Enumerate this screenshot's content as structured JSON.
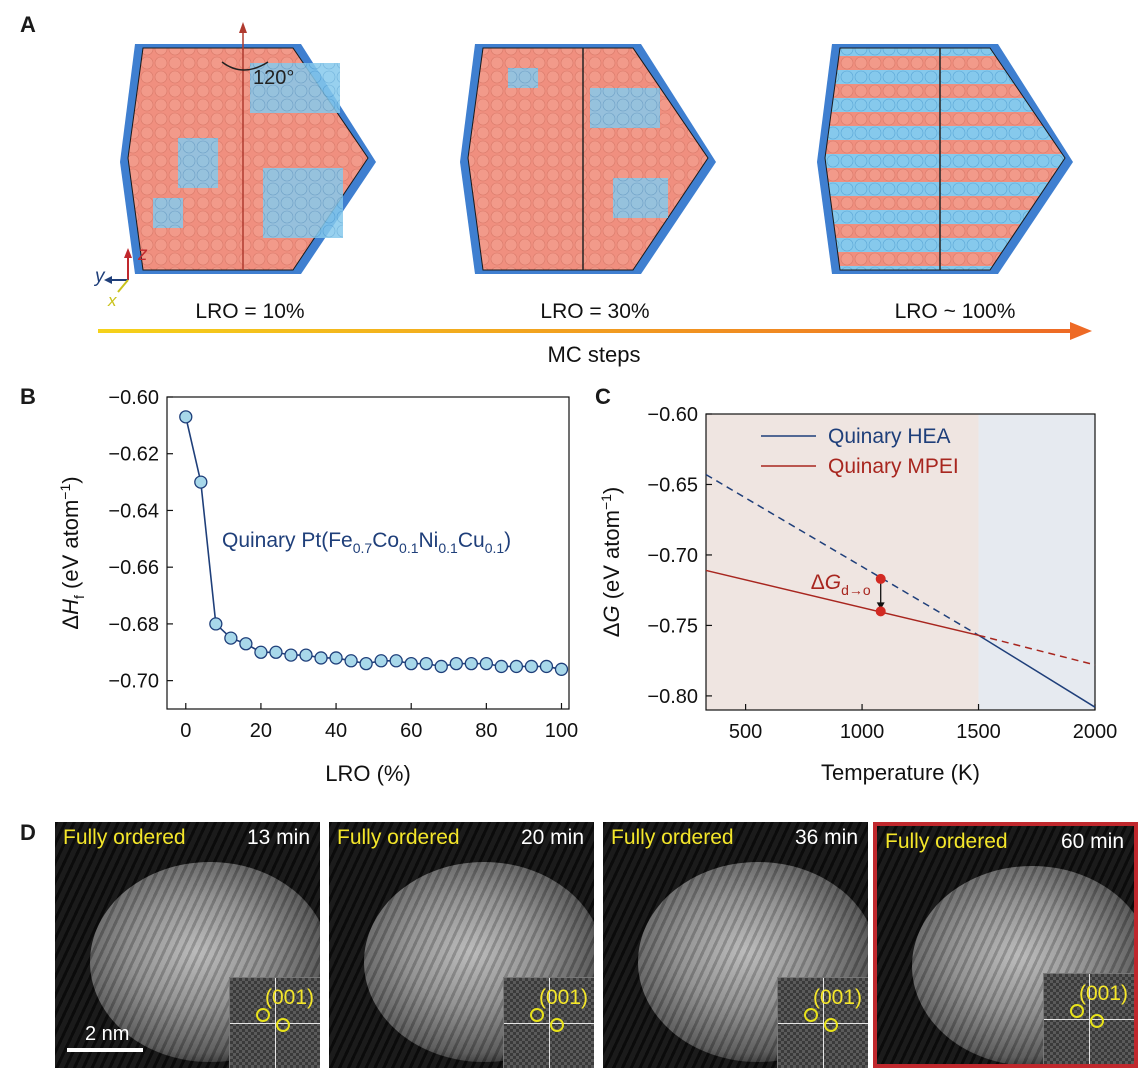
{
  "panel_a": {
    "letter": "A",
    "rotation_label": "120°",
    "axes": {
      "y": "y",
      "z": "z",
      "x": "x"
    },
    "lro_labels": [
      "LRO = 10%",
      "LRO = 30%",
      "LRO ~ 100%"
    ],
    "arrow_label": "MC steps",
    "colors": {
      "pt": "#f08f7f",
      "light_blue": "#72c2ea",
      "dark_blue": "#3f7fd0",
      "arrow_start": "#f5d21a",
      "arrow_end": "#ee6a25"
    }
  },
  "panel_b": {
    "letter": "B"
  },
  "panel_c": {
    "letter": "C"
  },
  "panel_d": {
    "letter": "D",
    "frames": [
      {
        "state": "Fully ordered",
        "time": "13 min",
        "miller": "(001)",
        "scale": "2 nm"
      },
      {
        "state": "Fully ordered",
        "time": "20 min",
        "miller": "(001)"
      },
      {
        "state": "Fully ordered",
        "time": "36 min",
        "miller": "(001)"
      },
      {
        "state": "Fully ordered",
        "time": "60 min",
        "miller": "(001)"
      }
    ],
    "highlight_color": "#c0282d"
  },
  "chart_data": [
    {
      "type": "line",
      "title": "",
      "xlabel": "LRO (%)",
      "ylabel": "ΔHf (eV atom−1)",
      "xlim": [
        -5,
        102
      ],
      "ylim": [
        -0.71,
        -0.6
      ],
      "xticks": [
        "0",
        "20",
        "40",
        "60",
        "80",
        "100"
      ],
      "yticks": [
        "-0.60",
        "-0.62",
        "-0.64",
        "-0.66",
        "-0.68",
        "-0.70"
      ],
      "annotation": "Quinary Pt(Fe0.7Co0.1Ni0.1Cu0.1)",
      "series": [
        {
          "name": "Quinary Pt(Fe0.7Co0.1Ni0.1Cu0.1)",
          "color": "#1f3f7a",
          "marker_fill": "#a8d8ea",
          "x": [
            0,
            4,
            8,
            12,
            16,
            20,
            24,
            28,
            32,
            36,
            40,
            44,
            48,
            52,
            56,
            60,
            64,
            68,
            72,
            76,
            80,
            84,
            88,
            92,
            96,
            100
          ],
          "y": [
            -0.607,
            -0.63,
            -0.68,
            -0.685,
            -0.687,
            -0.69,
            -0.69,
            -0.691,
            -0.691,
            -0.692,
            -0.692,
            -0.693,
            -0.694,
            -0.693,
            -0.693,
            -0.694,
            -0.694,
            -0.695,
            -0.694,
            -0.694,
            -0.694,
            -0.695,
            -0.695,
            -0.695,
            -0.695,
            -0.696
          ]
        }
      ]
    },
    {
      "type": "line",
      "title": "",
      "xlabel": "Temperature (K)",
      "ylabel": "ΔG (eV atom−1)",
      "xlim": [
        330,
        2000
      ],
      "ylim": [
        -0.81,
        -0.6
      ],
      "xticks": [
        "500",
        "1000",
        "1500",
        "2000"
      ],
      "yticks": [
        "-0.60",
        "-0.65",
        "-0.70",
        "-0.75",
        "-0.80"
      ],
      "annotation": "ΔGd→o",
      "annotation_x": 1080,
      "annotation_points": [
        -0.717,
        -0.74
      ],
      "transition_T": 1500,
      "region_colors": [
        "#efe5e1",
        "#e6eaf0"
      ],
      "series": [
        {
          "name": "Quinary HEA",
          "color": "#1f3f7a",
          "x": [
            330,
            1500,
            2000
          ],
          "y": [
            -0.643,
            -0.757,
            -0.808
          ],
          "solid_from": 1500
        },
        {
          "name": "Quinary MPEI",
          "color": "#a8261f",
          "x": [
            330,
            1500,
            2000
          ],
          "y": [
            -0.711,
            -0.757,
            -0.778
          ],
          "solid_to": 1500
        }
      ]
    }
  ]
}
